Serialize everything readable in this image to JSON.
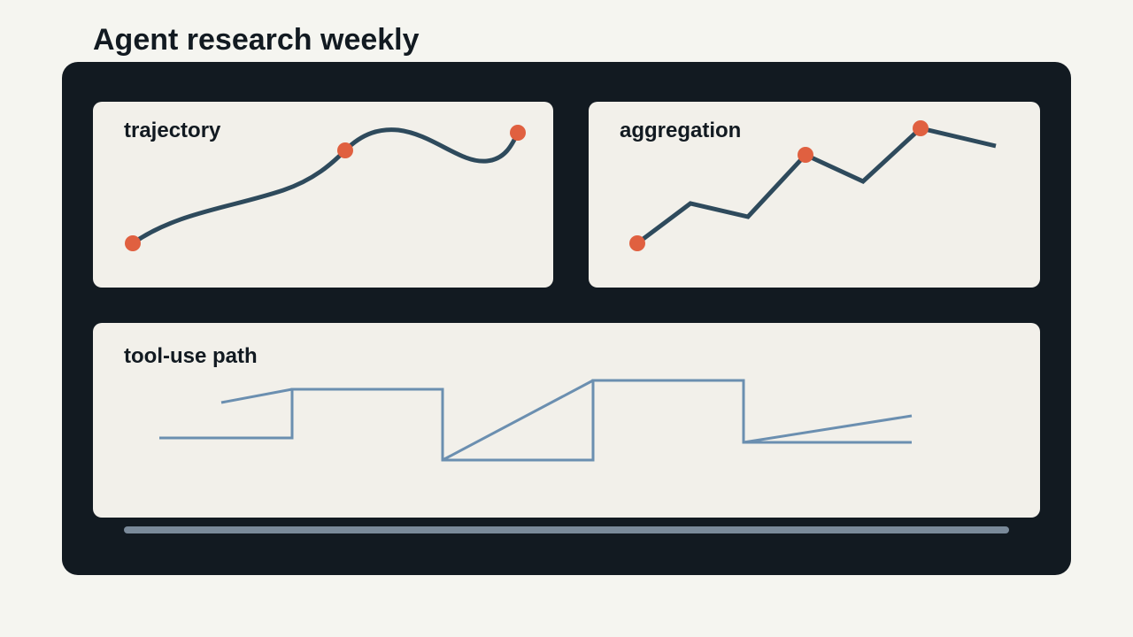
{
  "header": {
    "title": "Agent research weekly"
  },
  "cards": [
    {
      "label": "trajectory"
    },
    {
      "label": "aggregation"
    },
    {
      "label": "tool-use path"
    }
  ]
}
